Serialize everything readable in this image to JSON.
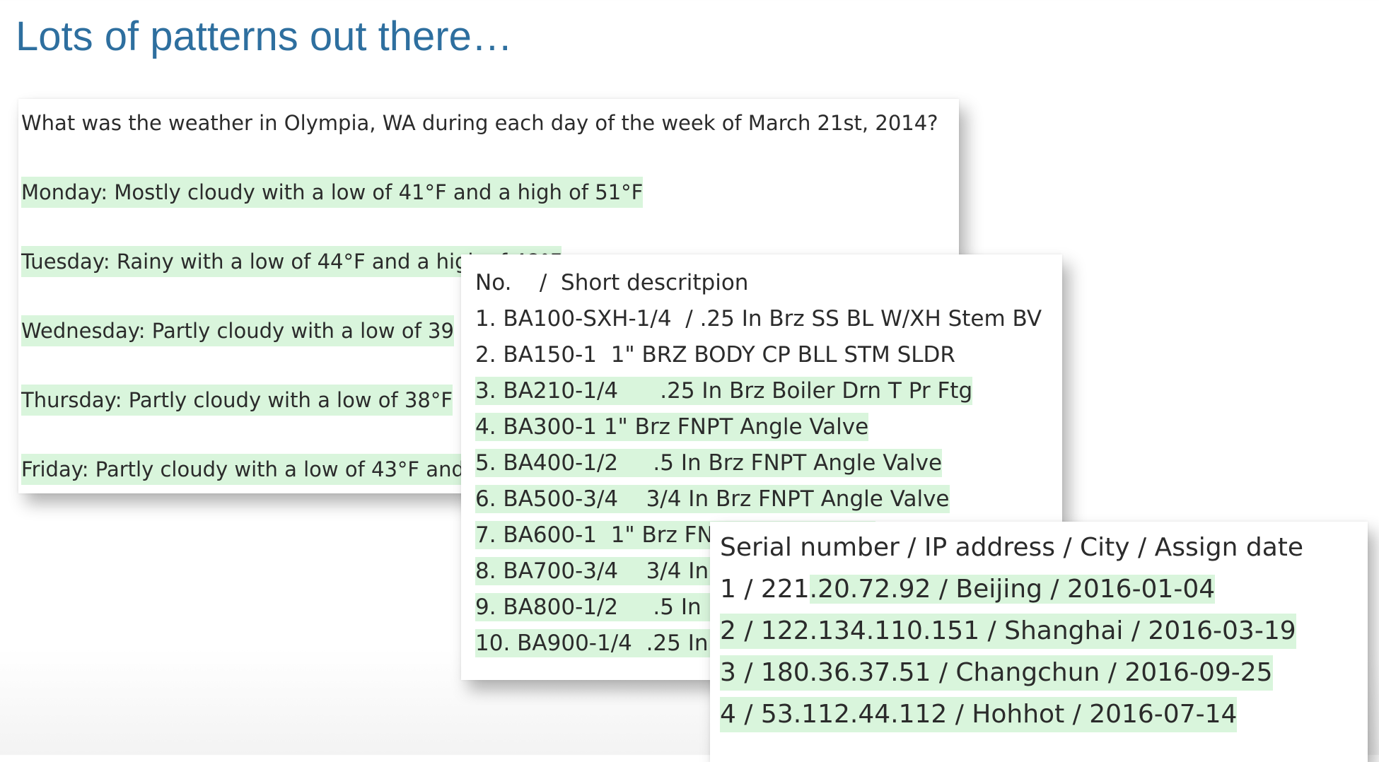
{
  "slide": {
    "title": "Lots of patterns out there…"
  },
  "weather": {
    "question": "What was the weather in Olympia, WA during each day of the week of March 21st, 2014?",
    "answers": [
      "Monday: Mostly cloudy with a low of 41°F and a high of 51°F",
      "Tuesday: Rainy with a low of 44°F and a high of 48°F",
      "Wednesday: Partly cloudy with a low of 39",
      "Thursday: Partly cloudy with a low of 38°F",
      "Friday: Partly cloudy with a low of 43°F and"
    ]
  },
  "parts": {
    "header": "No.    /  Short descritpion",
    "rows": [
      "1. BA100-SXH-1/4  / .25 In Brz SS BL W/XH Stem BV",
      "2. BA150-1  1\" BRZ BODY CP BLL STM SLDR",
      "3. BA210-1/4      .25 In Brz Boiler Drn T Pr Ftg",
      "4. BA300-1 1\" Brz FNPT Angle Valve",
      "5. BA400-1/2     .5 In Brz FNPT Angle Valve",
      "6. BA500-3/4    3/4 In Brz FNPT Angle Valve",
      "7. BA600-1  1\" Brz FNPT Angle Valve",
      "8. BA700-3/4    3/4 In Brz FNPT Angle Valve",
      "9. BA800-1/2     .5 In Brz FNPT Angle Valve",
      "10. BA900-1/4  .25 In Brz FNPT Angle Valve"
    ]
  },
  "ip": {
    "header": "Serial number / IP address / City / Assign date",
    "row1_prefix": "1 / 221",
    "row1_rest": ".20.72.92 / Beijing / 2016-01-04",
    "rows": [
      "2 / 122.134.110.151 / Shanghai / 2016-03-19",
      "3 / 180.36.37.51 / Changchun / 2016-09-25",
      "4 / 53.112.44.112 / Hohhot / 2016-07-14"
    ]
  }
}
